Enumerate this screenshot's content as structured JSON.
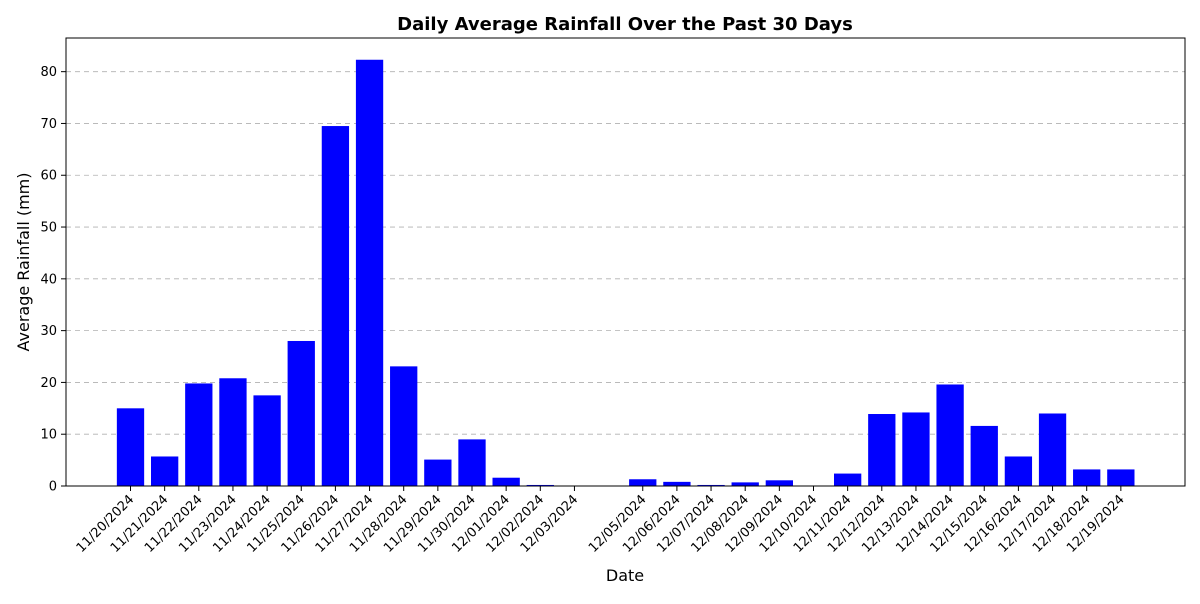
{
  "chart_data": {
    "type": "bar",
    "title": "Daily Average Rainfall Over the Past 30 Days",
    "xlabel": "Date",
    "ylabel": "Average Rainfall (mm)",
    "ylim": [
      0,
      86.5
    ],
    "yticks": [
      0,
      10,
      20,
      30,
      40,
      50,
      60,
      70,
      80
    ],
    "grid": "y-dashed",
    "bar_color": "#0000ff",
    "categories": [
      "11/20/2024",
      "11/21/2024",
      "11/22/2024",
      "11/23/2024",
      "11/24/2024",
      "11/25/2024",
      "11/26/2024",
      "11/27/2024",
      "11/28/2024",
      "11/29/2024",
      "11/30/2024",
      "12/01/2024",
      "12/02/2024",
      "12/03/2024",
      "",
      "12/05/2024",
      "12/06/2024",
      "12/07/2024",
      "12/08/2024",
      "12/09/2024",
      "12/10/2024",
      "12/11/2024",
      "12/12/2024",
      "12/13/2024",
      "12/14/2024",
      "12/15/2024",
      "12/16/2024",
      "12/17/2024",
      "12/18/2024",
      "12/19/2024"
    ],
    "values": [
      15.0,
      5.7,
      19.8,
      20.8,
      17.5,
      28.0,
      69.5,
      82.3,
      23.1,
      5.1,
      9.0,
      1.6,
      0.2,
      0.0,
      0.0,
      1.3,
      0.8,
      0.2,
      0.7,
      1.1,
      0.0,
      2.4,
      13.9,
      14.2,
      19.6,
      11.6,
      5.7,
      14.0,
      3.2,
      3.2
    ]
  }
}
